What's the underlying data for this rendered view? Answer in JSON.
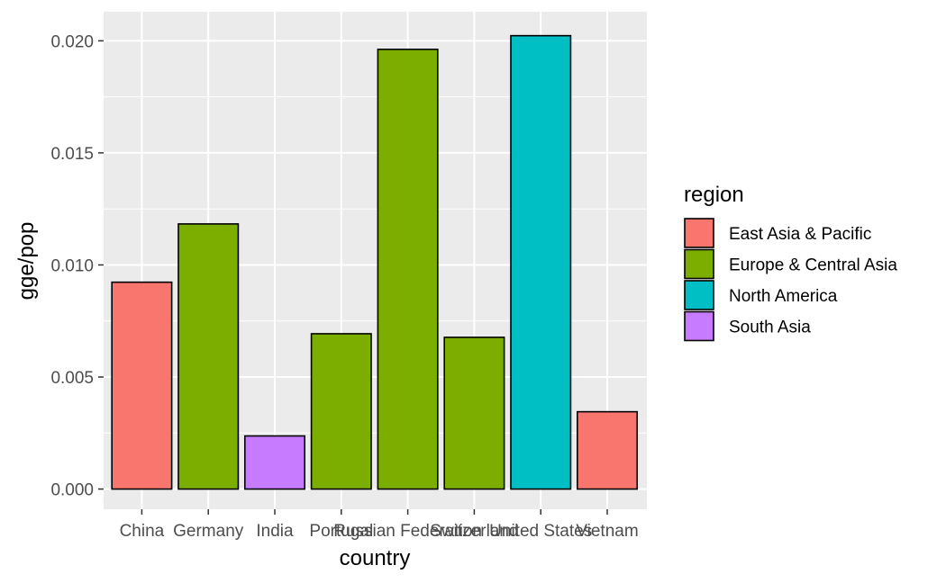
{
  "chart_data": {
    "type": "bar",
    "title": "",
    "xlabel": "country",
    "ylabel": "gge/pop",
    "categories": [
      "China",
      "Germany",
      "India",
      "Portugal",
      "Russian Federation",
      "Switzerland",
      "United States",
      "Vietnam"
    ],
    "values": [
      0.00923,
      0.01183,
      0.00237,
      0.00693,
      0.01962,
      0.00677,
      0.02023,
      0.00345
    ],
    "regions": [
      "East Asia & Pacific",
      "Europe & Central Asia",
      "South Asia",
      "Europe & Central Asia",
      "Europe & Central Asia",
      "Europe & Central Asia",
      "North America",
      "East Asia & Pacific"
    ],
    "ylim": [
      -0.0009,
      0.0213
    ],
    "yticks": [
      0.0,
      0.005,
      0.01,
      0.015,
      0.02
    ],
    "ytick_labels": [
      "0.000",
      "0.005",
      "0.010",
      "0.015",
      "0.020"
    ],
    "grid": true,
    "legend": {
      "title": "region",
      "placement": "right",
      "items": [
        {
          "label": "East Asia & Pacific",
          "color": "#F8766D"
        },
        {
          "label": "Europe & Central Asia",
          "color": "#7CAE00"
        },
        {
          "label": "North America",
          "color": "#00BFC4"
        },
        {
          "label": "South Asia",
          "color": "#C77CFF"
        }
      ]
    },
    "colors": {
      "panel_background": "#EBEBEB",
      "grid": "#FFFFFF",
      "bar_outline": "#000000"
    }
  }
}
